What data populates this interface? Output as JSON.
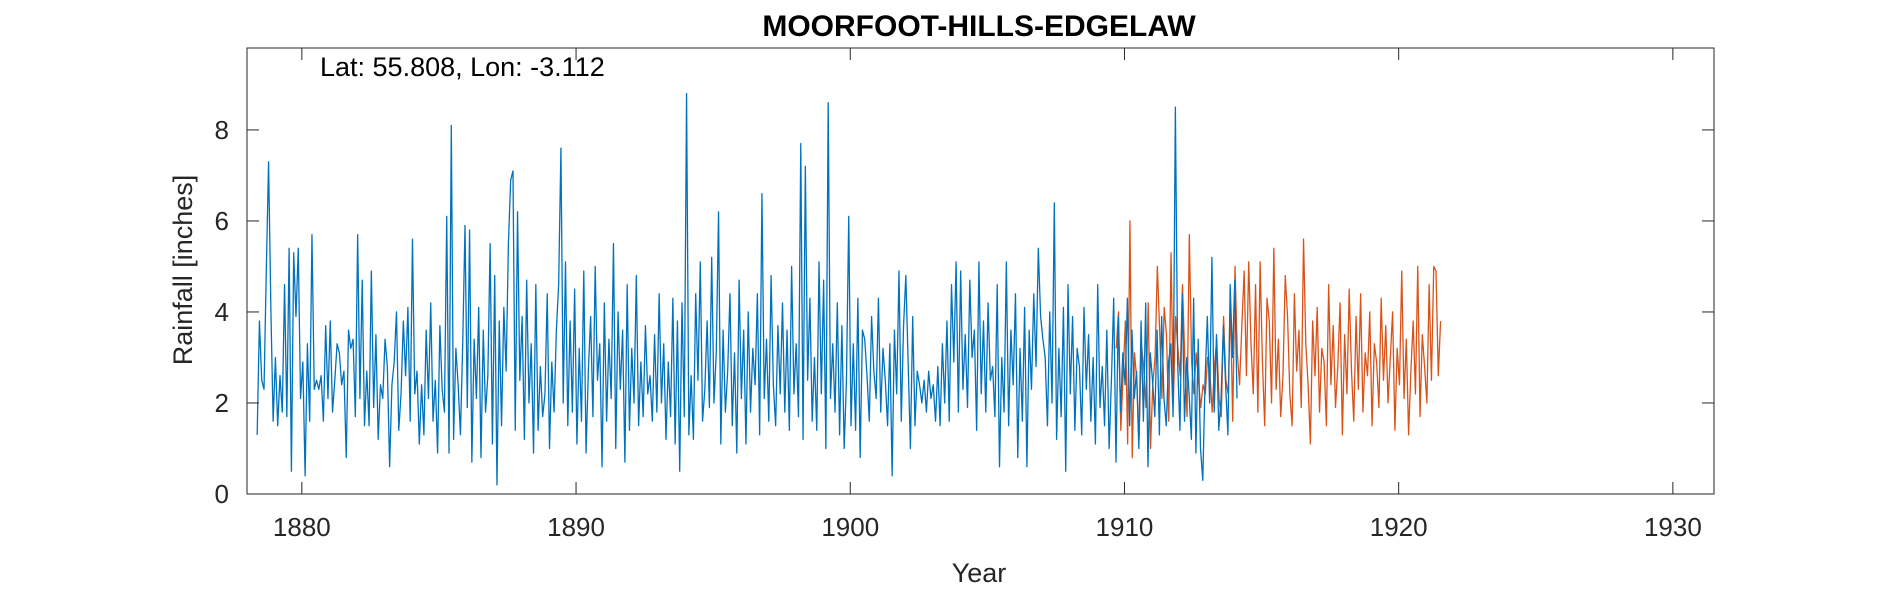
{
  "chart_data": {
    "type": "line",
    "title": "MOORFOOT-HILLS-EDGELAW",
    "annotation": "Lat: 55.808, Lon: -3.112",
    "xlabel": "Year",
    "ylabel": "Rainfall [inches]",
    "xlim": [
      1878,
      1931.5
    ],
    "ylim": [
      0,
      9.8
    ],
    "xticks": [
      1880,
      1890,
      1900,
      1910,
      1920,
      1930
    ],
    "yticks": [
      0,
      2,
      4,
      6,
      8
    ],
    "grid": false,
    "series": [
      {
        "color": "#D95319",
        "x_start": 1909.7,
        "x_step": 0.0833,
        "values": [
          3.2,
          4.0,
          1.4,
          2.6,
          3.8,
          1.1,
          6.0,
          0.8,
          3.1,
          2.5,
          1.2,
          3.3,
          2.8,
          1.9,
          4.2,
          1.0,
          2.4,
          3.0,
          5.0,
          3.6,
          2.1,
          4.1,
          3.5,
          1.6,
          5.3,
          2.0,
          3.9,
          3.2,
          2.6,
          4.6,
          3.0,
          1.7,
          5.7,
          2.9,
          2.2,
          3.1,
          2.5,
          1.9,
          2.4,
          2.2,
          3.0,
          2.7,
          1.8,
          2.8,
          3.4,
          2.1,
          1.7,
          3.9,
          2.5,
          2.2,
          4.2,
          1.6,
          5.0,
          3.1,
          2.4,
          3.7,
          4.9,
          2.6,
          5.1,
          3.3,
          2.2,
          4.6,
          1.8,
          5.1,
          2.9,
          1.5,
          4.3,
          3.8,
          2.0,
          5.4,
          2.3,
          3.4,
          1.7,
          2.6,
          4.8,
          3.9,
          2.2,
          1.5,
          4.4,
          2.7,
          3.6,
          1.9,
          5.6,
          3.3,
          2.4,
          1.1,
          3.8,
          2.6,
          4.1,
          1.8,
          3.2,
          2.9,
          1.5,
          4.6,
          2.4,
          3.7,
          1.9,
          2.8,
          4.2,
          1.3,
          3.5,
          2.2,
          4.5,
          2.7,
          1.6,
          3.9,
          2.3,
          4.4,
          1.8,
          3.1,
          2.6,
          4.0,
          1.5,
          3.3,
          2.9,
          1.9,
          4.3,
          2.5,
          3.7,
          2.0,
          3.0,
          4.0,
          1.4,
          3.2,
          2.4,
          4.9,
          2.1,
          3.4,
          1.3,
          2.7,
          3.8,
          2.2,
          5.0,
          1.7,
          3.5,
          2.8,
          2.0,
          4.6,
          2.5,
          5.0,
          4.9,
          2.6,
          3.8
        ]
      },
      {
        "color": "#0072BD",
        "x_start": 1878.37,
        "x_step": 0.0833,
        "values": [
          1.3,
          3.8,
          2.5,
          2.3,
          4.9,
          7.3,
          4.1,
          1.6,
          3.0,
          1.5,
          2.6,
          1.8,
          4.6,
          1.7,
          5.4,
          0.5,
          5.3,
          3.9,
          5.4,
          2.1,
          2.9,
          0.4,
          3.3,
          1.6,
          5.7,
          2.3,
          2.5,
          2.3,
          2.6,
          1.6,
          3.7,
          2.1,
          3.8,
          1.8,
          2.5,
          3.3,
          3.1,
          2.4,
          2.7,
          0.8,
          3.6,
          3.2,
          3.4,
          1.7,
          5.7,
          2.1,
          4.7,
          1.5,
          2.7,
          1.5,
          4.9,
          1.9,
          3.5,
          1.2,
          2.4,
          2.1,
          3.4,
          2.8,
          0.6,
          2.4,
          2.9,
          4.0,
          1.4,
          2.2,
          3.8,
          2.6,
          4.1,
          1.6,
          5.6,
          2.2,
          2.7,
          1.1,
          2.4,
          1.3,
          3.6,
          2.1,
          4.2,
          1.6,
          2.5,
          0.9,
          3.7,
          2.3,
          1.8,
          6.1,
          0.9,
          8.1,
          1.2,
          3.2,
          2.4,
          1.3,
          3.3,
          5.9,
          1.9,
          5.8,
          0.7,
          3.4,
          2.1,
          4.1,
          0.8,
          3.6,
          1.8,
          2.6,
          5.5,
          1.1,
          4.8,
          0.2,
          3.8,
          1.5,
          4.1,
          2.7,
          5.5,
          6.9,
          7.1,
          1.4,
          6.2,
          2.5,
          3.9,
          1.2,
          4.7,
          2.0,
          3.3,
          0.9,
          4.6,
          1.4,
          2.8,
          1.7,
          2.2,
          4.4,
          1.0,
          2.9,
          1.8,
          3.6,
          4.6,
          7.6,
          2.0,
          5.1,
          1.5,
          3.8,
          1.8,
          4.5,
          1.1,
          3.2,
          1.6,
          4.9,
          0.9,
          2.7,
          3.9,
          1.7,
          5.0,
          2.5,
          3.3,
          0.6,
          4.2,
          1.6,
          3.4,
          2.1,
          5.5,
          1.0,
          4.0,
          2.3,
          3.6,
          0.7,
          4.6,
          1.4,
          3.2,
          2.0,
          4.8,
          1.5,
          2.9,
          1.7,
          3.7,
          2.2,
          2.6,
          1.6,
          3.5,
          1.8,
          4.4,
          2.0,
          3.3,
          1.2,
          2.9,
          1.7,
          4.3,
          1.1,
          3.8,
          0.5,
          4.2,
          1.7,
          8.8,
          1.3,
          2.6,
          1.2,
          4.4,
          2.5,
          5.1,
          1.6,
          2.3,
          3.8,
          1.9,
          5.2,
          2.0,
          3.1,
          6.2,
          1.1,
          3.6,
          1.8,
          2.7,
          4.4,
          1.5,
          3.1,
          0.9,
          4.7,
          2.1,
          3.6,
          1.1,
          4.0,
          1.8,
          3.2,
          2.4,
          4.4,
          1.3,
          6.6,
          2.1,
          3.4,
          1.6,
          4.8,
          2.4,
          1.5,
          3.7,
          2.2,
          4.2,
          1.8,
          3.6,
          1.4,
          5.0,
          2.2,
          3.3,
          1.7,
          7.7,
          1.2,
          7.2,
          2.5,
          4.3,
          1.6,
          3.0,
          1.4,
          5.1,
          2.2,
          4.7,
          1.0,
          8.6,
          2.1,
          3.3,
          1.8,
          4.2,
          1.3,
          3.7,
          1.0,
          2.5,
          6.1,
          1.5,
          3.3,
          1.4,
          4.3,
          0.8,
          3.6,
          3.4,
          2.6,
          1.6,
          3.9,
          2.7,
          2.1,
          4.3,
          1.8,
          3.2,
          2.5,
          1.5,
          3.3,
          0.4,
          3.6,
          2.2,
          4.9,
          1.6,
          3.7,
          4.8,
          2.9,
          1.0,
          3.9,
          1.5,
          2.7,
          2.4,
          2.0,
          2.5,
          1.8,
          2.7,
          2.1,
          2.4,
          1.6,
          2.8,
          1.5,
          3.3,
          2.0,
          3.8,
          1.6,
          4.6,
          2.9,
          5.1,
          1.8,
          4.9,
          2.3,
          3.5,
          1.9,
          4.7,
          3.0,
          3.6,
          1.4,
          5.1,
          2.2,
          3.8,
          1.8,
          4.2,
          2.5,
          2.8,
          1.7,
          4.6,
          0.6,
          3.0,
          1.8,
          5.1,
          1.5,
          3.6,
          2.4,
          4.4,
          0.8,
          3.2,
          1.6,
          4.1,
          0.6,
          3.6,
          2.3,
          4.4,
          2.8,
          5.4,
          3.9,
          3.4,
          3.0,
          1.5,
          4.0,
          2.0,
          6.4,
          1.2,
          3.2,
          1.7,
          4.1,
          0.5,
          4.6,
          2.2,
          3.9,
          1.4,
          3.2,
          2.8,
          1.3,
          4.1,
          2.3,
          3.5,
          1.6,
          3.0,
          1.1,
          4.6,
          1.9,
          2.8,
          1.5,
          3.6,
          1.0,
          2.5,
          4.3,
          0.7,
          3.9,
          1.8,
          3.1,
          2.4,
          4.3,
          1.5,
          3.6,
          2.1,
          2.7,
          1.0,
          3.8,
          1.6,
          4.2,
          0.6,
          3.1,
          2.5,
          1.7,
          3.6,
          1.3,
          3.9,
          2.1,
          1.5,
          2.9,
          3.3,
          1.7,
          8.5,
          2.9,
          1.4,
          4.4,
          1.6,
          3.0,
          2.2,
          1.2,
          4.3,
          0.9,
          3.4,
          1.0,
          0.3,
          2.5,
          3.9,
          2.0,
          5.2,
          1.8,
          3.5,
          1.4,
          2.1,
          3.7,
          2.4,
          1.3,
          4.6,
          3.0,
          4.7,
          2.1
        ]
      }
    ]
  }
}
